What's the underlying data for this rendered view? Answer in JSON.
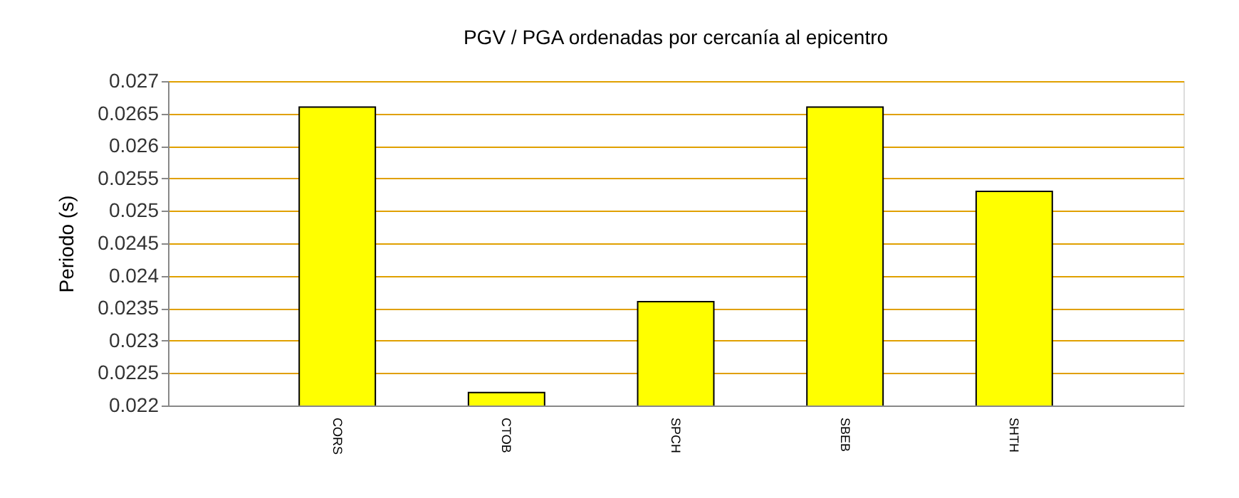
{
  "chart_data": {
    "type": "bar",
    "title": "PGV / PGA ordenadas por cercanía al epicentro",
    "ylabel": "Periodo (s)",
    "categories": [
      "CORS",
      "CTOB",
      "SPCH",
      "SBEB",
      "SHTH"
    ],
    "values": [
      0.0266,
      0.0222,
      0.0236,
      0.0266,
      0.0253
    ],
    "color": "#ffff00",
    "ylim": [
      0.022,
      0.027
    ],
    "yticks": [
      0.022,
      0.0225,
      0.023,
      0.0235,
      0.024,
      0.0245,
      0.025,
      0.0255,
      0.026,
      0.0265,
      0.027
    ],
    "grid": "y"
  }
}
